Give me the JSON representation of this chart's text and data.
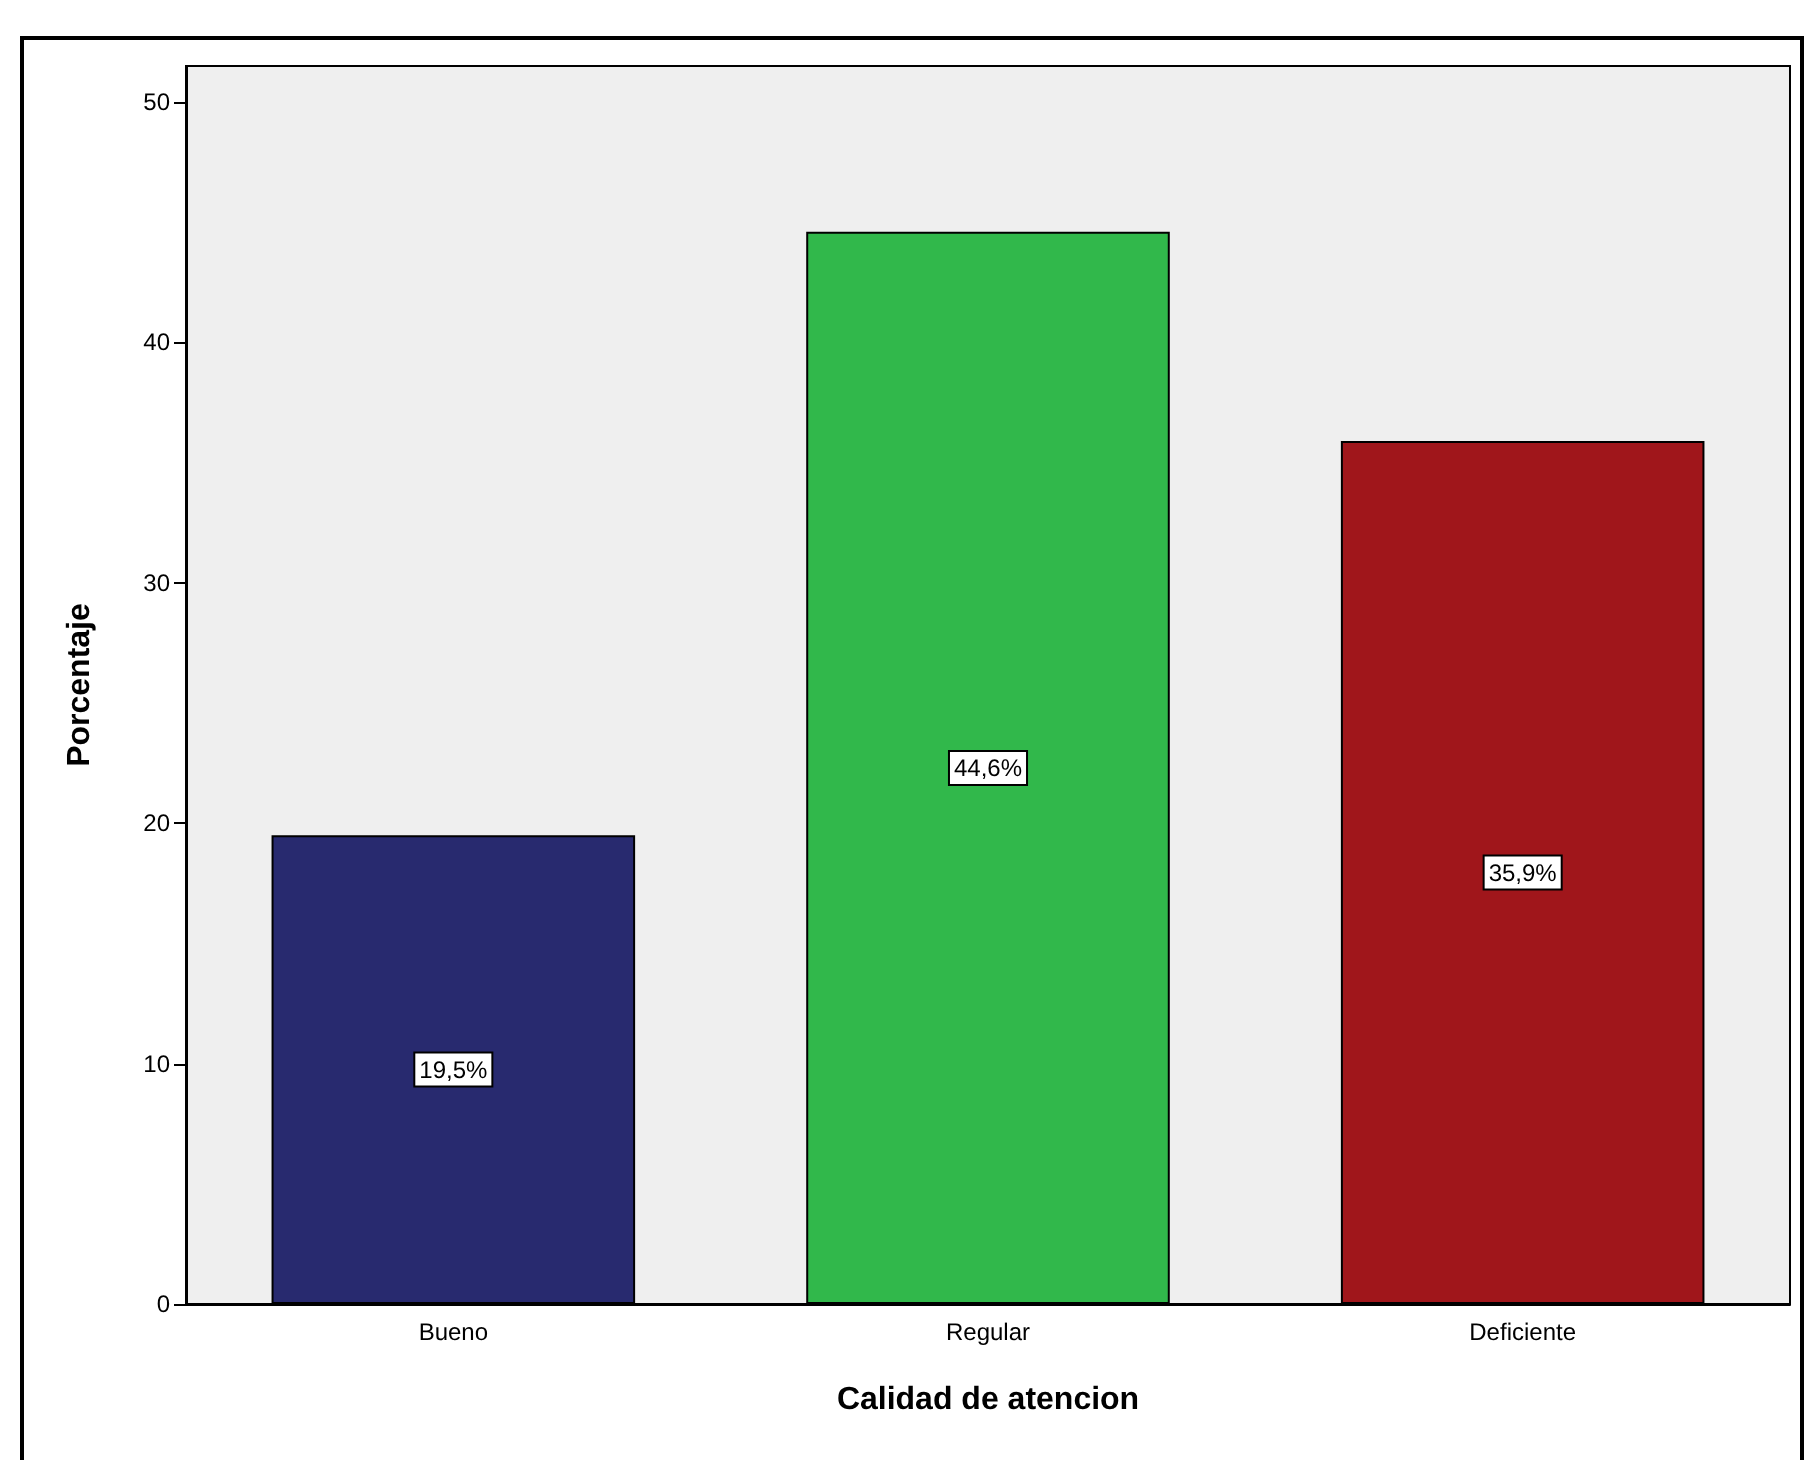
{
  "chart_data": {
    "type": "bar",
    "xlabel": "Calidad de atencion",
    "ylabel": "Porcentaje",
    "categories": [
      "Bueno",
      "Regular",
      "Deficiente"
    ],
    "values": [
      19.5,
      44.6,
      35.9
    ],
    "colors": [
      "#282a6f",
      "#31b84b",
      "#a0161b"
    ],
    "value_labels": [
      "19,5%",
      "44,6%",
      "35,9%"
    ],
    "ylim": [
      0,
      51.5
    ],
    "yticks": [
      0,
      10,
      20,
      30,
      40,
      50
    ],
    "grid": false
  }
}
